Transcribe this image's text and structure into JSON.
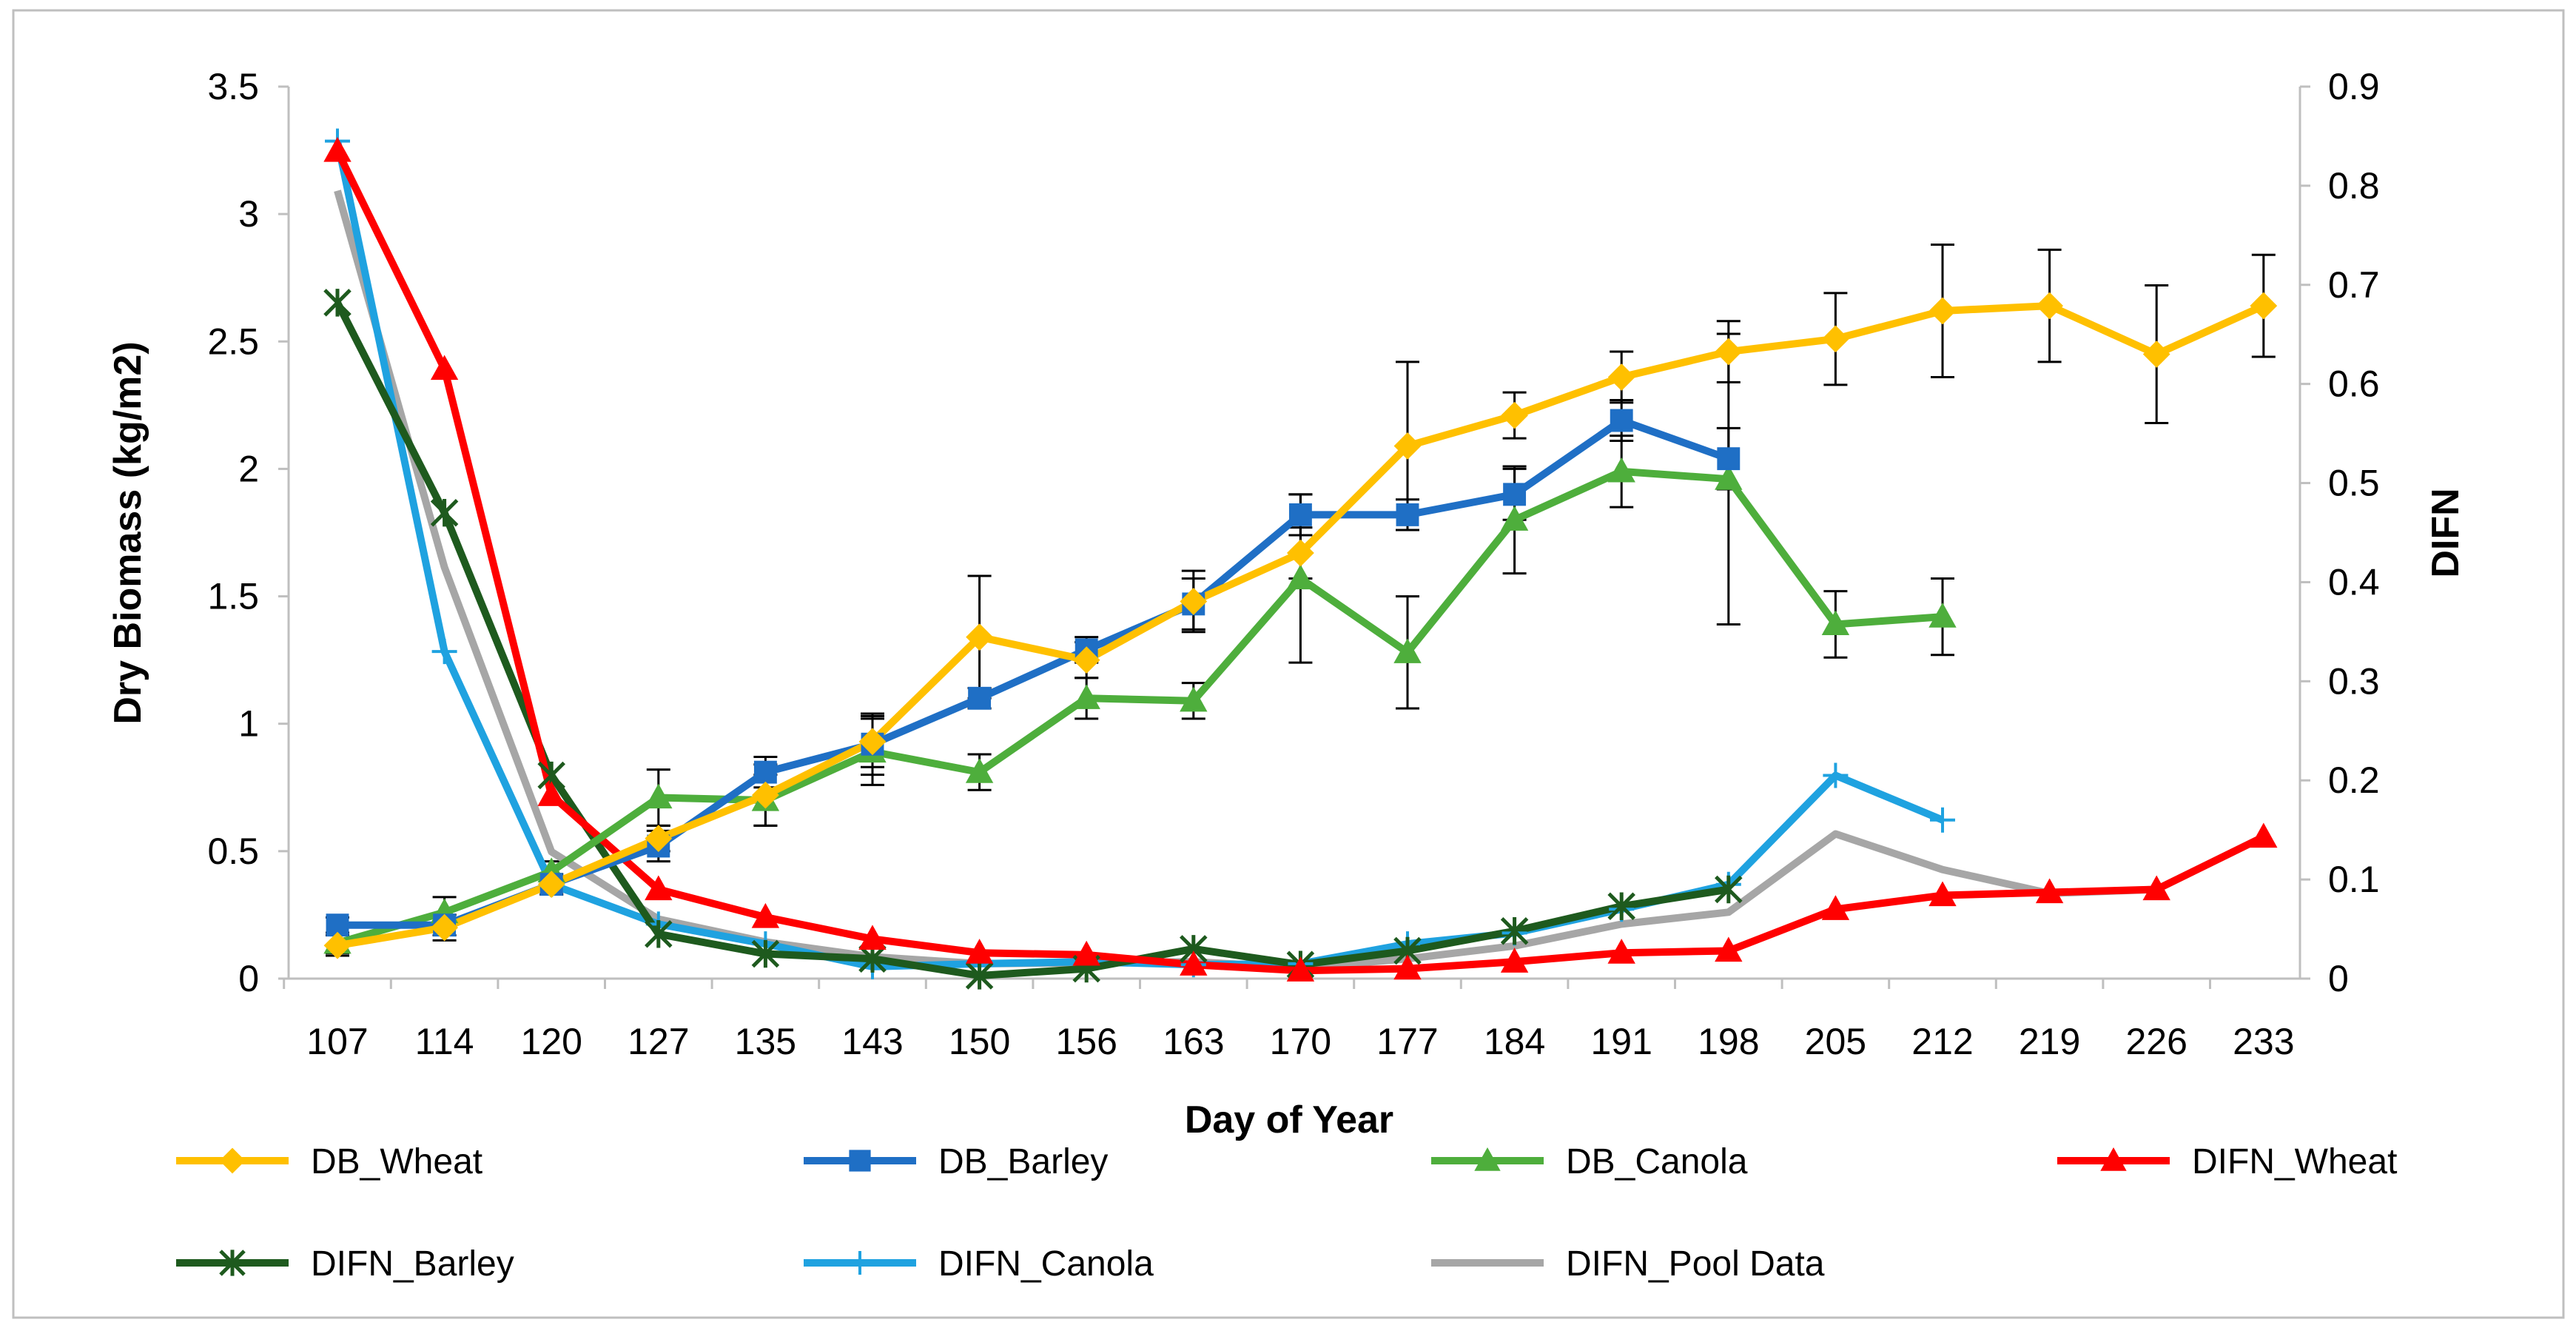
{
  "chart_data": {
    "type": "line",
    "title": "",
    "xlabel": "Day of Year",
    "ylabel": "Dry Biomass (kg/m2)",
    "y2label": "DIFN",
    "categories": [
      "107",
      "114",
      "120",
      "127",
      "135",
      "143",
      "150",
      "156",
      "163",
      "170",
      "177",
      "184",
      "191",
      "198",
      "205",
      "212",
      "219",
      "226",
      "233"
    ],
    "ylim": [
      0,
      3.5
    ],
    "y2lim": [
      0,
      0.9
    ],
    "yticks": [
      "0",
      "0.5",
      "1",
      "1.5",
      "2",
      "2.5",
      "3",
      "3.5"
    ],
    "y2ticks": [
      "0",
      "0.1",
      "0.2",
      "0.3",
      "0.4",
      "0.5",
      "0.6",
      "0.7",
      "0.8",
      "0.9"
    ],
    "legend_position": "bottom",
    "series": [
      {
        "name": "DB_Wheat",
        "axis": "left",
        "color": "#FFC000",
        "marker": "diamond",
        "values": [
          0.13,
          0.2,
          0.37,
          0.55,
          0.72,
          0.93,
          1.34,
          1.25,
          1.48,
          1.67,
          2.09,
          2.21,
          2.36,
          2.46,
          2.51,
          2.62,
          2.64,
          2.45,
          2.64
        ],
        "errors": [
          0.04,
          0.05,
          0.04,
          0.05,
          0.12,
          0.1,
          0.24,
          0.07,
          0.12,
          0.1,
          0.33,
          0.09,
          0.1,
          0.12,
          0.18,
          0.26,
          0.22,
          0.27,
          0.2
        ]
      },
      {
        "name": "DB_Barley",
        "axis": "left",
        "color": "#1F6FC5",
        "marker": "square",
        "values": [
          0.21,
          0.21,
          0.37,
          0.52,
          0.81,
          0.92,
          1.1,
          1.29,
          1.47,
          1.82,
          1.82,
          1.9,
          2.19,
          2.04,
          null,
          null,
          null,
          null,
          null
        ],
        "errors": [
          0.03,
          0.04,
          0.03,
          0.06,
          0.06,
          0.12,
          0.04,
          0.05,
          0.1,
          0.08,
          0.06,
          0.1,
          0.08,
          0.12,
          null,
          null,
          null,
          null,
          null
        ]
      },
      {
        "name": "DB_Canola",
        "axis": "left",
        "color": "#4EAE3C",
        "marker": "triangle",
        "values": [
          0.14,
          0.26,
          0.42,
          0.71,
          0.7,
          0.89,
          0.81,
          1.1,
          1.09,
          1.57,
          1.28,
          1.8,
          1.99,
          1.96,
          1.39,
          1.42,
          null,
          null,
          null
        ],
        "errors": [
          0.04,
          0.06,
          0.04,
          0.11,
          0.1,
          0.13,
          0.07,
          0.08,
          0.07,
          0.33,
          0.22,
          0.21,
          0.14,
          0.57,
          0.13,
          0.15,
          null,
          null,
          null
        ]
      },
      {
        "name": "DIFN_Wheat",
        "axis": "right",
        "color": "#FF0000",
        "marker": "triangle",
        "values": [
          0.835,
          0.615,
          0.185,
          0.09,
          0.062,
          0.04,
          0.026,
          0.024,
          0.014,
          0.008,
          0.01,
          0.017,
          0.026,
          0.028,
          0.07,
          0.084,
          0.087,
          0.09,
          0.143
        ]
      },
      {
        "name": "DIFN_Barley",
        "axis": "right",
        "color": "#1E5A1E",
        "marker": "star",
        "values": [
          0.682,
          0.47,
          0.205,
          0.045,
          0.025,
          0.02,
          0.003,
          0.01,
          0.03,
          0.014,
          0.028,
          0.048,
          0.073,
          0.09,
          null,
          null,
          null,
          null,
          null
        ]
      },
      {
        "name": "DIFN_Canola",
        "axis": "right",
        "color": "#1FA2E0",
        "marker": "plus",
        "values": [
          0.845,
          0.33,
          0.095,
          0.055,
          0.035,
          0.012,
          0.015,
          0.017,
          0.014,
          0.015,
          0.035,
          0.046,
          0.07,
          0.095,
          0.205,
          0.16,
          null,
          null,
          null
        ]
      },
      {
        "name": "DIFN_Pool Data",
        "axis": "right",
        "color": "#A6A6A6",
        "marker": "none",
        "values": [
          0.795,
          0.415,
          0.128,
          0.06,
          0.037,
          0.022,
          0.015,
          0.016,
          0.017,
          0.011,
          0.02,
          0.033,
          0.055,
          0.067,
          0.146,
          0.11,
          0.086,
          0.09,
          0.143
        ]
      }
    ]
  }
}
